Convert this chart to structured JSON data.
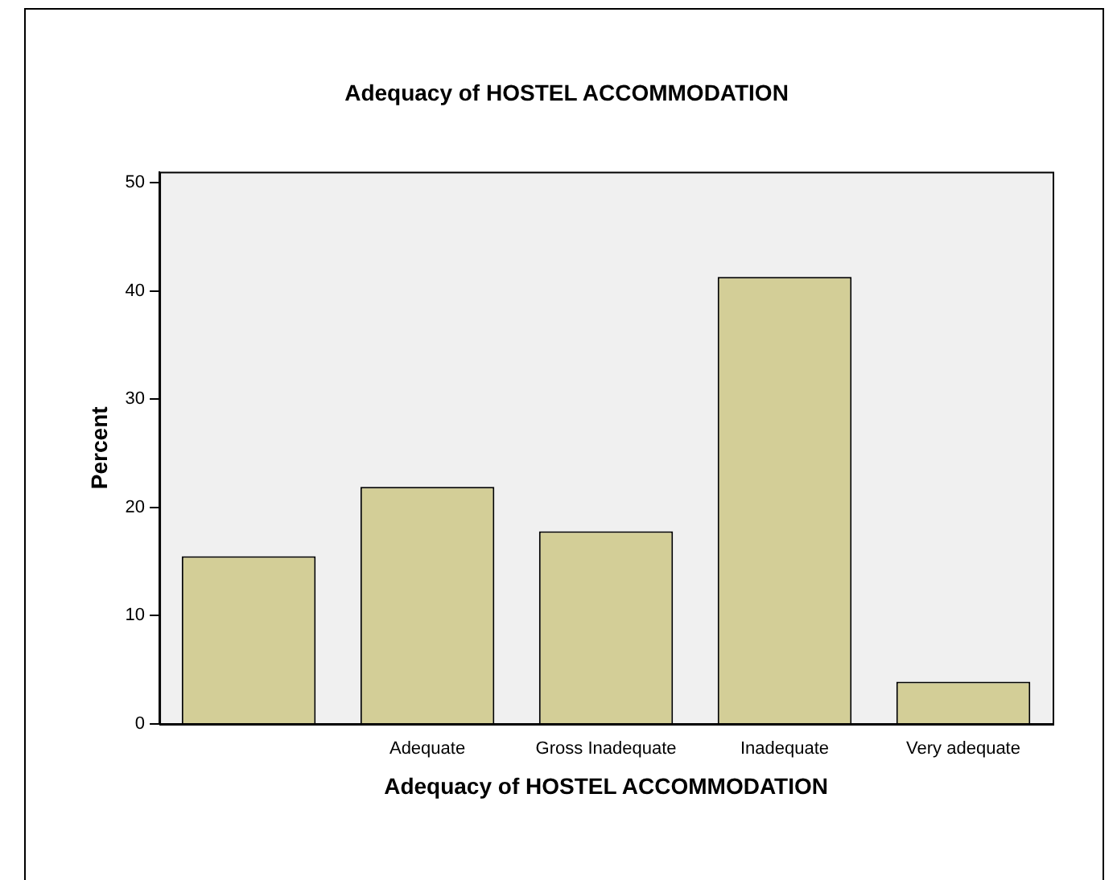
{
  "chart_data": {
    "type": "bar",
    "title": "Adequacy of HOSTEL ACCOMMODATION",
    "xlabel": "Adequacy of HOSTEL ACCOMMODATION",
    "ylabel": "Percent",
    "categories": [
      null,
      "Adequate",
      "Gross Inadequate",
      "Inadequate",
      "Very adequate"
    ],
    "values": [
      15.5,
      21.9,
      17.8,
      41.3,
      3.9
    ],
    "color": "#d3ce97",
    "ylim": [
      0,
      51
    ],
    "yticks": [
      0,
      10,
      20,
      30,
      40,
      50
    ],
    "grid": false,
    "legend": false
  }
}
